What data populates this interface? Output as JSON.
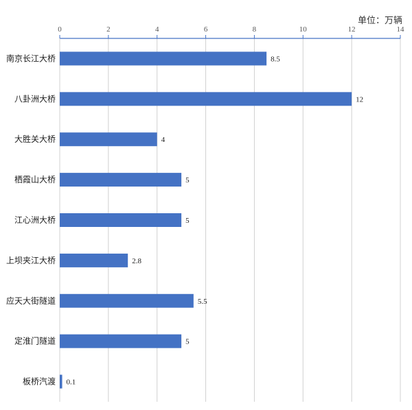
{
  "chart_data": {
    "type": "bar",
    "orientation": "horizontal",
    "unit_label": "单位：万辆",
    "categories": [
      "南京长江大桥",
      "八卦洲大桥",
      "大胜关大桥",
      "栖霞山大桥",
      "江心洲大桥",
      "上坝夹江大桥",
      "应天大街隧道",
      "定淮门隧道",
      "板桥汽渡"
    ],
    "values": [
      8.5,
      12,
      4,
      5,
      5,
      2.8,
      5.5,
      5,
      0.1
    ],
    "value_labels": [
      "8.5",
      "12",
      "4",
      "5",
      "5",
      "2.8",
      "5.5",
      "5",
      "0.1"
    ],
    "xlim": [
      0,
      14
    ],
    "xticks": [
      0,
      2,
      4,
      6,
      8,
      10,
      12,
      14
    ],
    "xtick_labels": [
      "0",
      "2",
      "4",
      "6",
      "8",
      "10",
      "12",
      "14"
    ],
    "x_axis_position": "top",
    "grid": true,
    "colors": {
      "bar": "#4472C4",
      "axis": "#4472C4",
      "grid": "#D0D0D0"
    }
  }
}
